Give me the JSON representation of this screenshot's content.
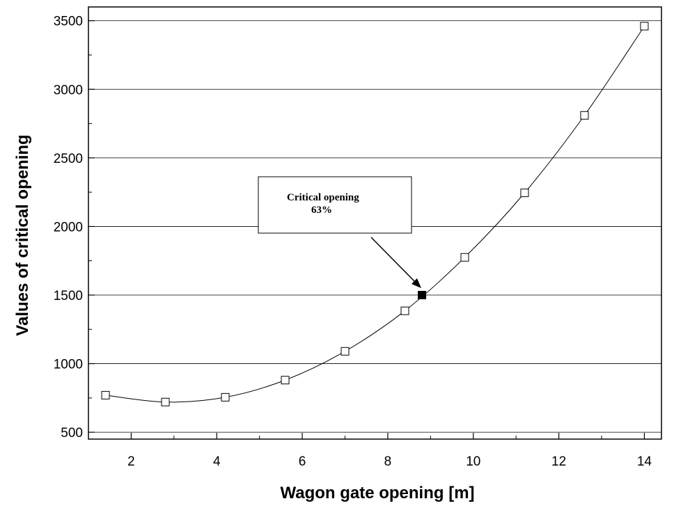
{
  "chart_data": {
    "type": "line",
    "title": "",
    "xlabel": "Wagon gate opening [m]",
    "ylabel": "Values of critical opening",
    "xlim": [
      1.0,
      14.4
    ],
    "ylim": [
      450,
      3600
    ],
    "xticks": [
      2,
      4,
      6,
      8,
      10,
      12,
      14
    ],
    "xtick_labels": [
      "2",
      "4",
      "6",
      "8",
      "10",
      "12",
      "14"
    ],
    "yticks": [
      500,
      1000,
      1500,
      2000,
      2500,
      3000,
      3500
    ],
    "ytick_labels": [
      "500",
      "1000",
      "1500",
      "2000",
      "2500",
      "3000",
      "3500"
    ],
    "grid": "horizontal",
    "legend": "none",
    "series": [
      {
        "marker": "open-square",
        "color": "#000000",
        "x": [
          1.4,
          2.8,
          4.2,
          5.6,
          7.0,
          8.4,
          9.8,
          11.2,
          12.6,
          14.0
        ],
        "y": [
          770,
          720,
          755,
          880,
          1090,
          1385,
          1775,
          2245,
          2810,
          3460
        ]
      }
    ],
    "highlight_point": {
      "x": 8.8,
      "y": 1500,
      "marker": "filled-square"
    },
    "annotation": {
      "lines": [
        "Critical opening",
        "63%"
      ]
    }
  }
}
